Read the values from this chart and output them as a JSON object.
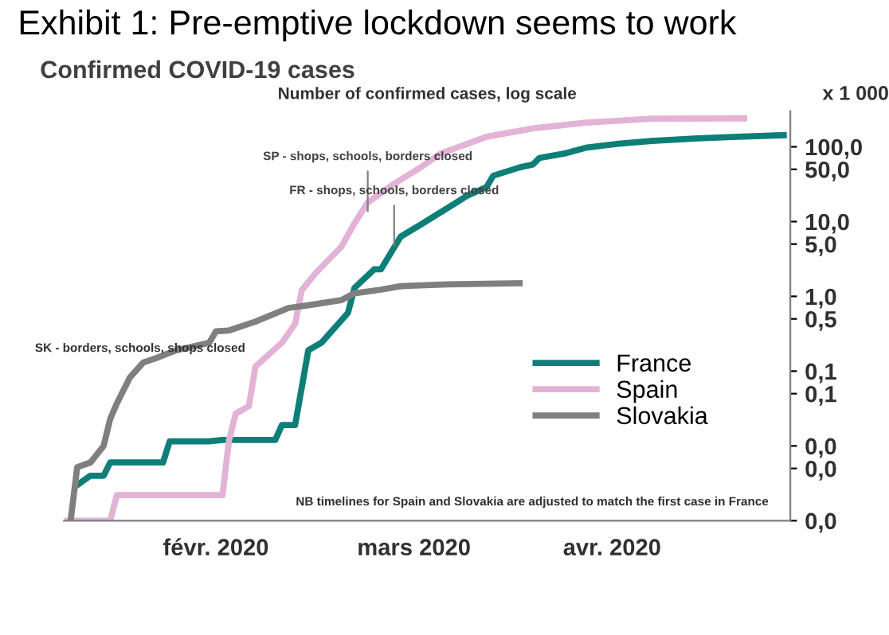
{
  "chart_data": {
    "type": "line",
    "title": "Exhibit 1: Pre-emptive lockdown seems to work",
    "subtitle": "Confirmed COVID-19 cases",
    "annotations": [
      "Number of confirmed cases, log scale",
      "x 1 000",
      "SK - borders, schools, shops closed",
      "NB timelines for Spain and Slovakia are adjusted to match the first case in France",
      {
        "text": "SP - shops, schools, borders closed",
        "x": "2020-03-09",
        "y": 12
      },
      {
        "text": "FR - shops, schools, borders closed",
        "x": "2020-03-13",
        "y": 4.2
      }
    ],
    "log": "y",
    "xlim": [
      "2020-01-23",
      "2020-05-12"
    ],
    "ylim": [
      0.001,
      300
    ],
    "xticks": [
      {
        "value": "2020-02-15",
        "label": "févr. 2020"
      },
      {
        "value": "2020-03-16",
        "label": "mars 2020"
      },
      {
        "value": "2020-04-15",
        "label": "avr. 2020"
      }
    ],
    "yticks": [
      {
        "value": 0.001,
        "label": "0,0"
      },
      {
        "value": 0.005,
        "label": "0,0"
      },
      {
        "value": 0.01,
        "label": "0,0"
      },
      {
        "value": 0.05,
        "label": "0,1"
      },
      {
        "value": 0.1,
        "label": "0,1"
      },
      {
        "value": 0.5,
        "label": "0,5"
      },
      {
        "value": 1,
        "label": "1,0"
      },
      {
        "value": 5,
        "label": "5,0"
      },
      {
        "value": 10,
        "label": "10,0"
      },
      {
        "value": 50,
        "label": "50,0"
      },
      {
        "value": 100,
        "label": "100,0"
      }
    ],
    "grid": false,
    "legend": "bottom right",
    "marker": "none",
    "line_style": "solid",
    "series": [
      {
        "name": "France",
        "color": "#0e7f78",
        "x": [
          "2020-01-25",
          "2020-01-27",
          "2020-01-29",
          "2020-01-30",
          "2020-02-07",
          "2020-02-08",
          "2020-02-14",
          "2020-02-16",
          "2020-02-24",
          "2020-02-25",
          "2020-02-27",
          "2020-02-29",
          "2020-03-02",
          "2020-03-06",
          "2020-03-07",
          "2020-03-10",
          "2020-03-11",
          "2020-03-14",
          "2020-03-17",
          "2020-03-21",
          "2020-03-24",
          "2020-03-27",
          "2020-03-28",
          "2020-04-01",
          "2020-04-03",
          "2020-04-04",
          "2020-04-08",
          "2020-04-11",
          "2020-04-16",
          "2020-04-21",
          "2020-04-28",
          "2020-05-04",
          "2020-05-11"
        ],
        "values": [
          0.003,
          0.004,
          0.004,
          0.006,
          0.006,
          0.0115,
          0.0115,
          0.012,
          0.012,
          0.019,
          0.019,
          0.19,
          0.24,
          0.6,
          1.3,
          2.3,
          2.3,
          6.3,
          9.1,
          15,
          22,
          29,
          41,
          53,
          58,
          71,
          82,
          97,
          110,
          120,
          130,
          136,
          143
        ]
      },
      {
        "name": "Spain",
        "color": "#e2b3d6",
        "x": [
          "2020-01-23",
          "2020-01-30",
          "2020-01-31",
          "2020-02-16",
          "2020-02-17",
          "2020-02-18",
          "2020-02-20",
          "2020-02-21",
          "2020-02-25",
          "2020-02-27",
          "2020-02-28",
          "2020-03-01",
          "2020-03-05",
          "2020-03-07",
          "2020-03-09",
          "2020-03-13",
          "2020-03-17",
          "2020-03-20",
          "2020-03-27",
          "2020-04-03",
          "2020-04-11",
          "2020-04-21",
          "2020-05-05"
        ],
        "values": [
          0.001,
          0.001,
          0.0022,
          0.0022,
          0.012,
          0.027,
          0.034,
          0.115,
          0.24,
          0.43,
          1.2,
          2.0,
          4.6,
          9.5,
          18,
          32,
          53,
          81,
          136,
          176,
          210,
          238,
          240
        ]
      },
      {
        "name": "Slovakia",
        "color": "#7f7f7f",
        "x": [
          "2020-01-24",
          "2020-01-25",
          "2020-01-27",
          "2020-01-29",
          "2020-01-30",
          "2020-01-31",
          "2020-02-02",
          "2020-02-04",
          "2020-02-06",
          "2020-02-09",
          "2020-02-14",
          "2020-02-15",
          "2020-02-17",
          "2020-02-21",
          "2020-02-26",
          "2020-02-29",
          "2020-03-05",
          "2020-03-07",
          "2020-03-11",
          "2020-03-14",
          "2020-03-21",
          "2020-04-01"
        ],
        "values": [
          0.001,
          0.0052,
          0.006,
          0.01,
          0.023,
          0.037,
          0.083,
          0.13,
          0.15,
          0.19,
          0.24,
          0.34,
          0.35,
          0.46,
          0.7,
          0.76,
          0.89,
          1.1,
          1.23,
          1.37,
          1.45,
          1.5
        ]
      }
    ]
  }
}
